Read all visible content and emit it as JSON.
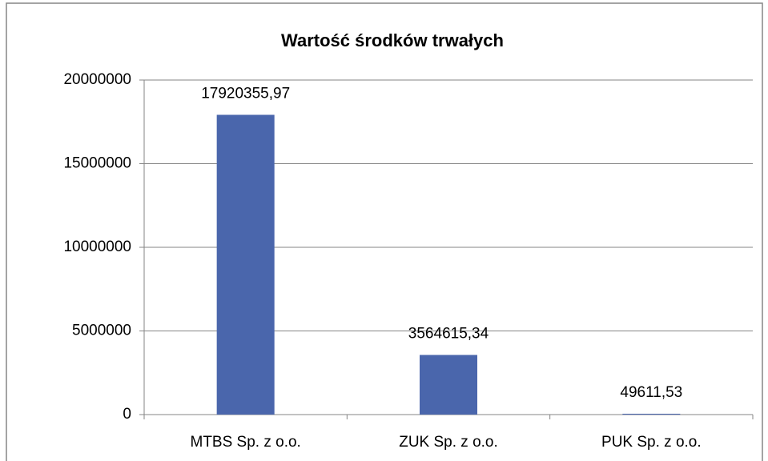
{
  "chart_data": {
    "type": "bar",
    "title": "Wartość środków trwałych",
    "categories": [
      "MTBS Sp. z o.o.",
      "ZUK Sp. z o.o.",
      "PUK Sp. z o.o."
    ],
    "values": [
      17920355.97,
      3564615.34,
      49611.53
    ],
    "value_labels": [
      "17920355,97",
      "3564615,34",
      "49611,53"
    ],
    "color": "#4a66ac",
    "ylim": [
      0,
      20000000
    ],
    "yticks": [
      0,
      5000000,
      10000000,
      15000000,
      20000000
    ],
    "grid": true
  }
}
